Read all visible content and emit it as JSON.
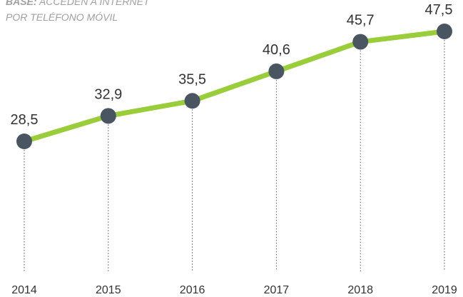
{
  "chart_data": {
    "type": "line",
    "subtitle_label": "BASE:",
    "subtitle_lines": [
      "ACCEDEN A INTERNET",
      "POR TELÉFONO MÓVIL"
    ],
    "categories": [
      "2014",
      "2015",
      "2016",
      "2017",
      "2018",
      "2019"
    ],
    "values": [
      28.5,
      32.9,
      35.5,
      40.6,
      45.7,
      47.5
    ],
    "value_labels": [
      "28,5",
      "32,9",
      "35,5",
      "40,6",
      "45,7",
      "47,5"
    ],
    "color": "#9acd3a",
    "marker_color": "#4a5562"
  }
}
